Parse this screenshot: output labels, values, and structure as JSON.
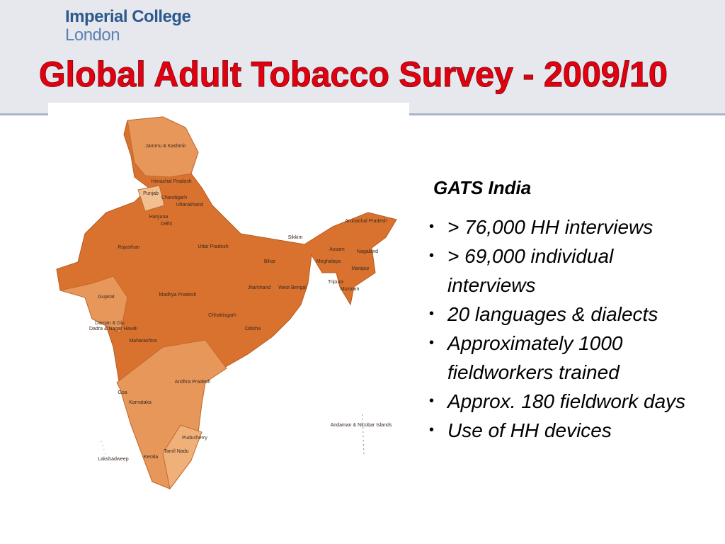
{
  "header": {
    "logo_line1": "Imperial College",
    "logo_line2": "London",
    "title": "Global Adult Tobacco Survey - 2009/10"
  },
  "map": {
    "labels": [
      "Jammu & Kashmir",
      "Himachal Pradesh",
      "Punjab",
      "Chandigarh",
      "Uttarakhand",
      "Haryana",
      "Delhi",
      "Rajasthan",
      "Uttar Pradesh",
      "Sikkim",
      "Arunachal Pradesh",
      "Assam",
      "Nagaland",
      "Meghalaya",
      "Bihar",
      "Manipur",
      "Tripura",
      "Mizoram",
      "Jharkhand",
      "West Bengal",
      "Gujarat",
      "Madhya Pradesh",
      "Chhattisgarh",
      "Odisha",
      "Daman & Diu",
      "Dadra & Nagar Haveli",
      "Maharashtra",
      "Andhra Pradesh",
      "Goa",
      "Karnataka",
      "Andaman & Nicobar Islands",
      "Puducherry",
      "Tamil Nadu",
      "Lakshadweep",
      "Kerala"
    ]
  },
  "content": {
    "heading": "GATS India",
    "bullets": [
      "> 76,000 HH interviews",
      "> 69,000 individual interviews",
      "20 languages  & dialects",
      "Approximately 1000 fieldworkers trained",
      "Approx. 180 fieldwork days",
      "Use of HH devices"
    ]
  }
}
